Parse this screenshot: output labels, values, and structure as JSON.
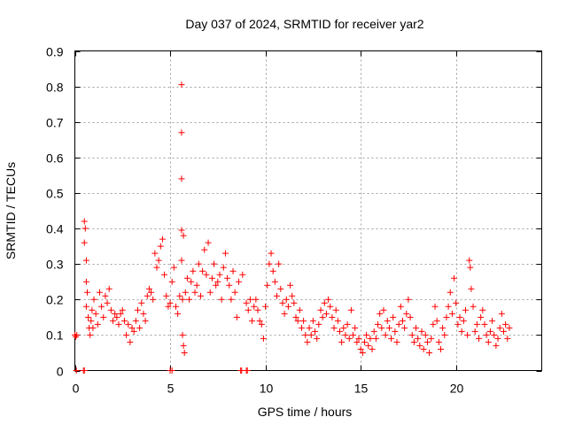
{
  "chart_data": {
    "type": "scatter",
    "title": "Day 037 of 2024, SRMTID for receiver yar2",
    "xlabel": "GPS time / hours",
    "ylabel": "SRMTID / TECUs",
    "xlim": [
      0,
      24.5
    ],
    "ylim": [
      0,
      0.9
    ],
    "x_ticks": [
      0,
      5,
      10,
      15,
      20
    ],
    "y_ticks": [
      0,
      0.1,
      0.2,
      0.3,
      0.4,
      0.5,
      0.6,
      0.7,
      0.8,
      0.9
    ],
    "x_tick_labels": [
      "0",
      "5",
      "10",
      "15",
      "20"
    ],
    "y_tick_labels": [
      "0",
      "0.1",
      "0.2",
      "0.3",
      "0.4",
      "0.5",
      "0.6",
      "0.7",
      "0.8",
      "0.9"
    ],
    "grid": true,
    "marker": "+",
    "color": "#ff0000",
    "series": [
      {
        "name": "SRMTID",
        "points": [
          [
            0.0,
            0.1
          ],
          [
            0.05,
            0.095
          ],
          [
            0.1,
            0.1
          ],
          [
            0.08,
            0.0
          ],
          [
            0.45,
            0.0
          ],
          [
            0.5,
            0.0
          ],
          [
            0.5,
            0.42
          ],
          [
            0.55,
            0.4
          ],
          [
            0.5,
            0.36
          ],
          [
            0.6,
            0.31
          ],
          [
            0.6,
            0.25
          ],
          [
            0.65,
            0.22
          ],
          [
            0.6,
            0.18
          ],
          [
            0.7,
            0.15
          ],
          [
            0.75,
            0.12
          ],
          [
            0.8,
            0.1
          ],
          [
            0.85,
            0.14
          ],
          [
            0.9,
            0.17
          ],
          [
            0.95,
            0.12
          ],
          [
            1.0,
            0.2
          ],
          [
            1.1,
            0.16
          ],
          [
            1.2,
            0.13
          ],
          [
            1.3,
            0.22
          ],
          [
            1.4,
            0.18
          ],
          [
            1.5,
            0.15
          ],
          [
            1.6,
            0.21
          ],
          [
            1.7,
            0.19
          ],
          [
            1.8,
            0.23
          ],
          [
            1.9,
            0.17
          ],
          [
            2.0,
            0.14
          ],
          [
            2.1,
            0.16
          ],
          [
            2.2,
            0.15
          ],
          [
            2.3,
            0.13
          ],
          [
            2.4,
            0.16
          ],
          [
            2.5,
            0.17
          ],
          [
            2.6,
            0.14
          ],
          [
            2.7,
            0.1
          ],
          [
            2.8,
            0.13
          ],
          [
            2.9,
            0.08
          ],
          [
            3.0,
            0.12
          ],
          [
            3.1,
            0.11
          ],
          [
            3.2,
            0.14
          ],
          [
            3.3,
            0.17
          ],
          [
            3.4,
            0.12
          ],
          [
            3.5,
            0.19
          ],
          [
            3.6,
            0.16
          ],
          [
            3.7,
            0.14
          ],
          [
            3.8,
            0.21
          ],
          [
            3.9,
            0.23
          ],
          [
            4.0,
            0.22
          ],
          [
            4.1,
            0.2
          ],
          [
            4.2,
            0.33
          ],
          [
            4.3,
            0.29
          ],
          [
            4.4,
            0.31
          ],
          [
            4.5,
            0.35
          ],
          [
            4.6,
            0.37
          ],
          [
            4.7,
            0.27
          ],
          [
            4.8,
            0.21
          ],
          [
            4.9,
            0.18
          ],
          [
            5.0,
            0.19
          ],
          [
            5.0,
            0.0
          ],
          [
            5.1,
            0.0
          ],
          [
            5.1,
            0.25
          ],
          [
            5.2,
            0.29
          ],
          [
            5.3,
            0.18
          ],
          [
            5.4,
            0.16
          ],
          [
            5.5,
            0.21
          ],
          [
            5.6,
            0.31
          ],
          [
            5.65,
            0.2
          ],
          [
            5.6,
            0.805
          ],
          [
            5.6,
            0.67
          ],
          [
            5.6,
            0.54
          ],
          [
            5.6,
            0.395
          ],
          [
            5.7,
            0.38
          ],
          [
            5.65,
            0.1
          ],
          [
            5.7,
            0.07
          ],
          [
            5.75,
            0.05
          ],
          [
            5.8,
            0.22
          ],
          [
            5.9,
            0.26
          ],
          [
            6.0,
            0.2
          ],
          [
            6.1,
            0.25
          ],
          [
            6.2,
            0.28
          ],
          [
            6.3,
            0.22
          ],
          [
            6.4,
            0.24
          ],
          [
            6.5,
            0.3
          ],
          [
            6.6,
            0.21
          ],
          [
            6.7,
            0.28
          ],
          [
            6.8,
            0.34
          ],
          [
            6.9,
            0.27
          ],
          [
            7.0,
            0.36
          ],
          [
            7.1,
            0.22
          ],
          [
            7.2,
            0.26
          ],
          [
            7.3,
            0.3
          ],
          [
            7.4,
            0.24
          ],
          [
            7.5,
            0.25
          ],
          [
            7.6,
            0.27
          ],
          [
            7.7,
            0.2
          ],
          [
            7.8,
            0.29
          ],
          [
            7.9,
            0.33
          ],
          [
            8.0,
            0.26
          ],
          [
            8.1,
            0.24
          ],
          [
            8.2,
            0.2
          ],
          [
            8.3,
            0.28
          ],
          [
            8.4,
            0.22
          ],
          [
            8.5,
            0.15
          ],
          [
            8.6,
            0.25
          ],
          [
            8.7,
            0.0
          ],
          [
            8.75,
            0.0
          ],
          [
            8.8,
            0.27
          ],
          [
            9.0,
            0.0
          ],
          [
            9.05,
            0.0
          ],
          [
            9.0,
            0.19
          ],
          [
            9.1,
            0.17
          ],
          [
            9.2,
            0.2
          ],
          [
            9.3,
            0.14
          ],
          [
            9.4,
            0.18
          ],
          [
            9.5,
            0.2
          ],
          [
            9.6,
            0.17
          ],
          [
            9.7,
            0.14
          ],
          [
            9.8,
            0.13
          ],
          [
            9.9,
            0.09
          ],
          [
            10.0,
            0.18
          ],
          [
            10.1,
            0.24
          ],
          [
            10.2,
            0.3
          ],
          [
            10.3,
            0.33
          ],
          [
            10.4,
            0.28
          ],
          [
            10.5,
            0.25
          ],
          [
            10.6,
            0.21
          ],
          [
            10.7,
            0.3
          ],
          [
            10.8,
            0.23
          ],
          [
            10.9,
            0.19
          ],
          [
            11.0,
            0.16
          ],
          [
            11.1,
            0.2
          ],
          [
            11.2,
            0.18
          ],
          [
            11.3,
            0.24
          ],
          [
            11.4,
            0.21
          ],
          [
            11.5,
            0.19
          ],
          [
            11.6,
            0.15
          ],
          [
            11.7,
            0.14
          ],
          [
            11.8,
            0.17
          ],
          [
            11.9,
            0.12
          ],
          [
            12.0,
            0.14
          ],
          [
            12.1,
            0.1
          ],
          [
            12.2,
            0.08
          ],
          [
            12.3,
            0.12
          ],
          [
            12.4,
            0.1
          ],
          [
            12.5,
            0.14
          ],
          [
            12.6,
            0.11
          ],
          [
            12.7,
            0.09
          ],
          [
            12.8,
            0.13
          ],
          [
            12.9,
            0.17
          ],
          [
            13.0,
            0.15
          ],
          [
            13.1,
            0.19
          ],
          [
            13.2,
            0.16
          ],
          [
            13.3,
            0.2
          ],
          [
            13.4,
            0.18
          ],
          [
            13.5,
            0.15
          ],
          [
            13.6,
            0.12
          ],
          [
            13.7,
            0.17
          ],
          [
            13.8,
            0.14
          ],
          [
            13.9,
            0.11
          ],
          [
            14.0,
            0.08
          ],
          [
            14.1,
            0.12
          ],
          [
            14.2,
            0.1
          ],
          [
            14.3,
            0.13
          ],
          [
            14.4,
            0.09
          ],
          [
            14.5,
            0.17
          ],
          [
            14.6,
            0.1
          ],
          [
            14.7,
            0.12
          ],
          [
            14.8,
            0.08
          ],
          [
            14.9,
            0.09
          ],
          [
            15.0,
            0.06
          ],
          [
            15.1,
            0.05
          ],
          [
            15.2,
            0.08
          ],
          [
            15.3,
            0.1
          ],
          [
            15.4,
            0.07
          ],
          [
            15.5,
            0.09
          ],
          [
            15.6,
            0.06
          ],
          [
            15.7,
            0.11
          ],
          [
            15.8,
            0.09
          ],
          [
            15.9,
            0.13
          ],
          [
            16.0,
            0.16
          ],
          [
            16.1,
            0.12
          ],
          [
            16.2,
            0.17
          ],
          [
            16.3,
            0.1
          ],
          [
            16.4,
            0.14
          ],
          [
            16.5,
            0.12
          ],
          [
            16.6,
            0.09
          ],
          [
            16.7,
            0.15
          ],
          [
            16.8,
            0.11
          ],
          [
            16.9,
            0.08
          ],
          [
            17.0,
            0.13
          ],
          [
            17.1,
            0.18
          ],
          [
            17.2,
            0.14
          ],
          [
            17.3,
            0.12
          ],
          [
            17.4,
            0.16
          ],
          [
            17.5,
            0.2
          ],
          [
            17.6,
            0.15
          ],
          [
            17.7,
            0.1
          ],
          [
            17.8,
            0.08
          ],
          [
            17.9,
            0.12
          ],
          [
            18.0,
            0.09
          ],
          [
            18.1,
            0.07
          ],
          [
            18.2,
            0.11
          ],
          [
            18.3,
            0.06
          ],
          [
            18.4,
            0.1
          ],
          [
            18.5,
            0.08
          ],
          [
            18.6,
            0.05
          ],
          [
            18.7,
            0.09
          ],
          [
            18.8,
            0.13
          ],
          [
            18.9,
            0.18
          ],
          [
            19.0,
            0.14
          ],
          [
            19.1,
            0.08
          ],
          [
            19.2,
            0.06
          ],
          [
            19.3,
            0.12
          ],
          [
            19.4,
            0.1
          ],
          [
            19.5,
            0.15
          ],
          [
            19.6,
            0.18
          ],
          [
            19.7,
            0.22
          ],
          [
            19.8,
            0.16
          ],
          [
            19.9,
            0.26
          ],
          [
            20.0,
            0.19
          ],
          [
            20.1,
            0.13
          ],
          [
            20.2,
            0.15
          ],
          [
            20.3,
            0.11
          ],
          [
            20.4,
            0.14
          ],
          [
            20.5,
            0.17
          ],
          [
            20.6,
            0.1
          ],
          [
            20.7,
            0.31
          ],
          [
            20.75,
            0.29
          ],
          [
            20.8,
            0.23
          ],
          [
            20.9,
            0.18
          ],
          [
            21.0,
            0.11
          ],
          [
            21.1,
            0.13
          ],
          [
            21.2,
            0.09
          ],
          [
            21.3,
            0.15
          ],
          [
            21.4,
            0.17
          ],
          [
            21.5,
            0.13
          ],
          [
            21.6,
            0.1
          ],
          [
            21.7,
            0.08
          ],
          [
            21.8,
            0.11
          ],
          [
            21.9,
            0.14
          ],
          [
            22.0,
            0.1
          ],
          [
            22.1,
            0.07
          ],
          [
            22.2,
            0.09
          ],
          [
            22.3,
            0.12
          ],
          [
            22.4,
            0.16
          ],
          [
            22.5,
            0.11
          ],
          [
            22.6,
            0.13
          ],
          [
            22.7,
            0.09
          ],
          [
            22.8,
            0.12
          ]
        ]
      }
    ]
  }
}
